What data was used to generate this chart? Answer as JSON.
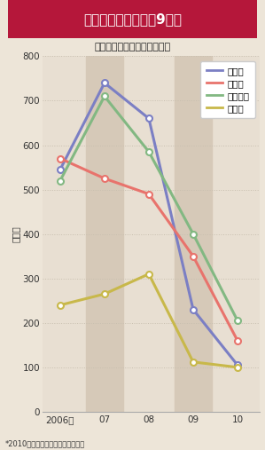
{
  "title": "新日本はピーク時の9割減",
  "subtitle": "４大監査法人の採用数の推移",
  "ylabel": "（人）",
  "footnote": "*2010年の採用数は本誌取材による",
  "years": [
    2006,
    2007,
    2008,
    2009,
    2010
  ],
  "xtick_labels": [
    "2006年",
    "07",
    "08",
    "09",
    "10"
  ],
  "series": [
    {
      "name": "新日本",
      "color": "#7b7fc4",
      "values": [
        545,
        740,
        660,
        230,
        105
      ]
    },
    {
      "name": "あずさ",
      "color": "#e8736c",
      "values": [
        570,
        525,
        490,
        350,
        160
      ]
    },
    {
      "name": "トーマツ",
      "color": "#82b882",
      "values": [
        520,
        710,
        585,
        400,
        205
      ]
    },
    {
      "name": "あらた",
      "color": "#c8b84a",
      "values": [
        240,
        265,
        310,
        112,
        100
      ]
    }
  ],
  "ylim": [
    0,
    800
  ],
  "yticks": [
    0,
    100,
    200,
    300,
    400,
    500,
    600,
    700,
    800
  ],
  "title_bg_color": "#b5173a",
  "title_text_color": "#ffffff",
  "bg_color": "#ede5d8",
  "plot_bg_color": "#e8dfd2",
  "stripe_color": "#d6c9b8",
  "line_width": 2.2,
  "marker": "o",
  "marker_size": 5,
  "marker_color": "white",
  "marker_edge_width": 1.5,
  "grid_color": "#c8bfaf",
  "legend_line_colors": [
    "#7b7fc4",
    "#e8736c",
    "#82b882",
    "#c8b84a"
  ]
}
